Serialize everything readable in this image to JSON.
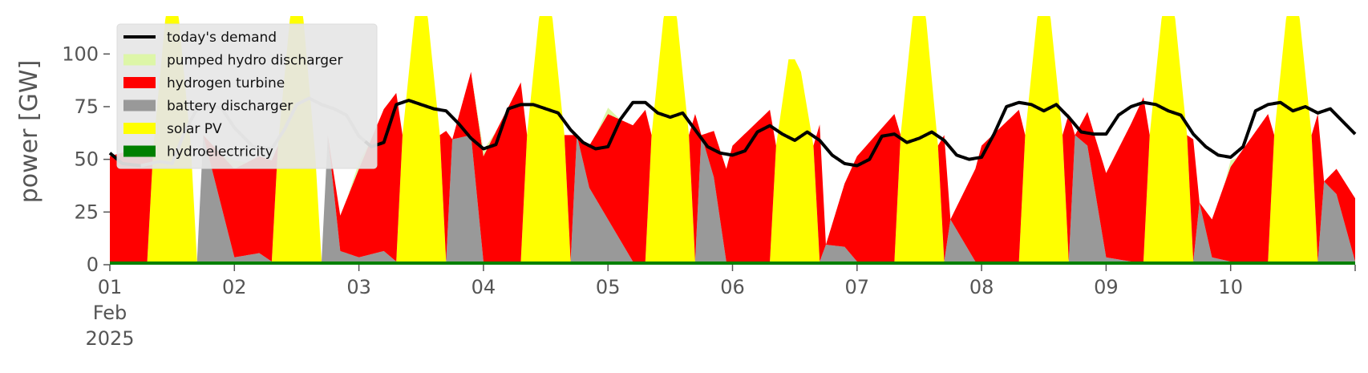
{
  "chart_data": {
    "type": "area",
    "title": "",
    "ylabel": "power [GW]",
    "xlabel": "",
    "xlim": [
      0,
      10
    ],
    "ylim": [
      0,
      118
    ],
    "y_ticks": [
      0,
      25,
      50,
      75,
      100
    ],
    "x_ticks": [
      {
        "x": 0,
        "lines": [
          "01",
          "Feb",
          "2025"
        ]
      },
      {
        "x": 1,
        "lines": [
          "02"
        ]
      },
      {
        "x": 2,
        "lines": [
          "03"
        ]
      },
      {
        "x": 3,
        "lines": [
          "04"
        ]
      },
      {
        "x": 4,
        "lines": [
          "05"
        ]
      },
      {
        "x": 5,
        "lines": [
          "06"
        ]
      },
      {
        "x": 6,
        "lines": [
          "07"
        ]
      },
      {
        "x": 7,
        "lines": [
          "08"
        ]
      },
      {
        "x": 8,
        "lines": [
          "09"
        ]
      },
      {
        "x": 9,
        "lines": [
          "10"
        ]
      }
    ],
    "grid": false,
    "background": "#ffffff",
    "legend_position": "top-left",
    "legend": [
      {
        "label": "today's demand",
        "kind": "line",
        "color": "#000000"
      },
      {
        "label": "pumped hydro discharger",
        "kind": "patch",
        "color": "#ddf6a8"
      },
      {
        "label": "hydrogen turbine",
        "kind": "patch",
        "color": "#ff0000"
      },
      {
        "label": "battery discharger",
        "kind": "patch",
        "color": "#999999"
      },
      {
        "label": "solar PV",
        "kind": "patch",
        "color": "#ffff00"
      },
      {
        "label": "hydroelectricity",
        "kind": "patch",
        "color": "#008000"
      }
    ],
    "stack_order": [
      "hydroelectricity",
      "battery discharger",
      "solar PV",
      "hydrogen turbine",
      "pumped hydro discharger"
    ],
    "series": [
      {
        "name": "hydroelectricity",
        "color": "#008000",
        "x": [
          0,
          10
        ],
        "y": [
          1.5,
          1.5
        ]
      },
      {
        "name": "battery discharger",
        "color": "#999999",
        "x": [
          0,
          0.3,
          0.7,
          0.75,
          1.0,
          1.2,
          1.3,
          1.7,
          1.75,
          1.85,
          2.0,
          2.2,
          2.3,
          2.7,
          2.75,
          2.9,
          3.0,
          3.2,
          3.3,
          3.7,
          3.75,
          3.85,
          4.0,
          4.2,
          4.3,
          4.7,
          4.75,
          4.85,
          4.95,
          5.0,
          5.2,
          5.3,
          5.7,
          5.75,
          5.9,
          6.0,
          6.2,
          6.3,
          6.7,
          6.75,
          6.95,
          7.0,
          7.2,
          7.3,
          7.7,
          7.75,
          7.85,
          8.0,
          8.2,
          8.3,
          8.7,
          8.75,
          8.85,
          9.0,
          9.2,
          9.3,
          9.7,
          9.75,
          9.85,
          10.0
        ],
        "y": [
          0,
          0,
          0,
          60,
          2,
          4,
          0,
          0,
          60,
          5,
          2,
          5,
          0,
          0,
          58,
          60,
          0,
          0,
          0,
          0,
          60,
          35,
          20,
          0,
          0,
          0,
          60,
          40,
          0,
          0,
          0,
          0,
          0,
          8,
          7,
          0,
          0,
          0,
          0,
          20,
          0,
          0,
          0,
          0,
          0,
          60,
          55,
          2,
          0,
          0,
          0,
          28,
          2,
          0,
          0,
          0,
          0,
          38,
          32,
          0
        ]
      },
      {
        "name": "solar PV",
        "color": "#ffff00",
        "x": [
          0,
          0.3,
          0.35,
          0.45,
          0.55,
          0.65,
          0.7,
          0.75,
          1.0,
          1.3,
          1.35,
          1.45,
          1.55,
          1.65,
          1.7,
          1.75,
          2.0,
          2.3,
          2.35,
          2.45,
          2.55,
          2.65,
          2.7,
          2.75,
          3.0,
          3.3,
          3.35,
          3.45,
          3.55,
          3.65,
          3.7,
          3.75,
          4.0,
          4.3,
          4.35,
          4.45,
          4.55,
          4.65,
          4.7,
          4.75,
          5.0,
          5.3,
          5.35,
          5.45,
          5.5,
          5.55,
          5.65,
          5.7,
          5.75,
          6.0,
          6.3,
          6.35,
          6.45,
          6.55,
          6.65,
          6.7,
          6.75,
          7.0,
          7.3,
          7.35,
          7.45,
          7.55,
          7.65,
          7.7,
          7.75,
          8.0,
          8.3,
          8.35,
          8.45,
          8.55,
          8.65,
          8.7,
          8.75,
          9.0,
          9.3,
          9.35,
          9.45,
          9.55,
          9.65,
          9.7,
          9.75,
          10.0
        ],
        "y": [
          0,
          0,
          55,
          118,
          118,
          55,
          0,
          0,
          0,
          0,
          55,
          118,
          118,
          50,
          0,
          0,
          0,
          0,
          60,
          118,
          118,
          60,
          0,
          0,
          0,
          0,
          60,
          118,
          118,
          60,
          0,
          0,
          0,
          0,
          60,
          118,
          118,
          60,
          0,
          0,
          0,
          0,
          55,
          96,
          96,
          90,
          55,
          0,
          0,
          0,
          0,
          60,
          118,
          118,
          55,
          0,
          0,
          0,
          0,
          60,
          118,
          118,
          60,
          0,
          0,
          0,
          0,
          60,
          118,
          118,
          60,
          0,
          0,
          0,
          0,
          60,
          118,
          118,
          60,
          0,
          0,
          0
        ]
      },
      {
        "name": "hydrogen turbine",
        "color": "#ff0000",
        "x": [
          0,
          0.3,
          0.35,
          0.65,
          0.7,
          0.75,
          1.0,
          1.3,
          1.35,
          1.65,
          1.7,
          1.75,
          2.0,
          2.3,
          2.35,
          2.65,
          2.7,
          2.75,
          3.0,
          3.3,
          3.35,
          3.65,
          3.7,
          3.75,
          4.0,
          4.3,
          4.35,
          4.65,
          4.7,
          4.75,
          5.0,
          5.3,
          5.35,
          5.65,
          5.7,
          5.75,
          6.0,
          6.3,
          6.35,
          6.65,
          6.7,
          6.75,
          7.0,
          7.3,
          7.35,
          7.65,
          7.7,
          7.75,
          8.0,
          8.3,
          8.35,
          8.65,
          8.7,
          8.75,
          9.0,
          9.3,
          9.35,
          9.65,
          9.7,
          9.75,
          10.0
        ],
        "y": [
          50,
          55,
          0,
          0,
          0,
          0,
          42,
          48,
          0,
          0,
          0,
          0,
          42,
          80,
          0,
          0,
          62,
          0,
          50,
          85,
          0,
          0,
          60,
          0,
          50,
          72,
          0,
          0,
          70,
          0,
          55,
          72,
          0,
          0,
          65,
          0,
          50,
          70,
          0,
          0,
          60,
          0,
          55,
          72,
          0,
          0,
          70,
          0,
          40,
          78,
          0,
          0,
          58,
          0,
          45,
          70,
          0,
          0,
          70,
          0,
          30
        ]
      },
      {
        "name": "pumped hydro discharger",
        "color": "#ddf6a8",
        "x": [
          0,
          0.9,
          1.0,
          1.1,
          1.9,
          2.0,
          2.1,
          2.9,
          3.0,
          3.1,
          3.9,
          4.0,
          4.1,
          5.0,
          8.95,
          9.0,
          9.05,
          10.0
        ],
        "y": [
          0,
          0,
          4,
          0,
          0,
          3,
          0,
          0,
          3,
          0,
          0,
          3,
          0,
          0,
          0,
          3,
          0,
          0
        ]
      },
      {
        "name": "today's demand",
        "color": "#000000",
        "x": [
          0,
          0.1,
          0.25,
          0.4,
          0.5,
          0.6,
          0.7,
          0.8,
          0.9,
          1.0,
          1.15,
          1.3,
          1.4,
          1.5,
          1.6,
          1.7,
          1.8,
          1.9,
          2.0,
          2.1,
          2.2,
          2.3,
          2.4,
          2.5,
          2.6,
          2.7,
          2.8,
          2.9,
          3.0,
          3.1,
          3.2,
          3.3,
          3.4,
          3.5,
          3.6,
          3.7,
          3.8,
          3.9,
          4.0,
          4.1,
          4.2,
          4.3,
          4.4,
          4.5,
          4.6,
          4.7,
          4.8,
          4.9,
          5.0,
          5.1,
          5.2,
          5.3,
          5.4,
          5.5,
          5.6,
          5.7,
          5.8,
          5.9,
          6.0,
          6.1,
          6.2,
          6.3,
          6.4,
          6.5,
          6.6,
          6.7,
          6.8,
          6.9,
          7.0,
          7.1,
          7.2,
          7.3,
          7.4,
          7.5,
          7.6,
          7.7,
          7.8,
          7.9,
          8.0,
          8.1,
          8.2,
          8.3,
          8.4,
          8.5,
          8.6,
          8.7,
          8.8,
          8.9,
          9.0,
          9.1,
          9.2,
          9.3,
          9.4,
          9.5,
          9.6,
          9.7,
          9.8,
          9.9,
          10.0
        ],
        "y": [
          53,
          48,
          47,
          49,
          48,
          63,
          74,
          76,
          74,
          65,
          56,
          55,
          64,
          76,
          79,
          76,
          74,
          71,
          61,
          56,
          58,
          76,
          78,
          76,
          74,
          73,
          67,
          60,
          55,
          57,
          74,
          76,
          76,
          74,
          72,
          64,
          58,
          55,
          56,
          69,
          77,
          77,
          72,
          70,
          72,
          64,
          56,
          53,
          52,
          54,
          63,
          66,
          62,
          59,
          63,
          59,
          52,
          48,
          47,
          50,
          61,
          62,
          58,
          60,
          63,
          59,
          52,
          50,
          51,
          62,
          75,
          77,
          76,
          73,
          76,
          70,
          63,
          62,
          62,
          71,
          75,
          77,
          76,
          73,
          71,
          62,
          56,
          52,
          51,
          56,
          73,
          76,
          77,
          73,
          75,
          72,
          74,
          68,
          62
        ],
        "gray_span": [
          0.25,
          2.05
        ]
      }
    ]
  }
}
